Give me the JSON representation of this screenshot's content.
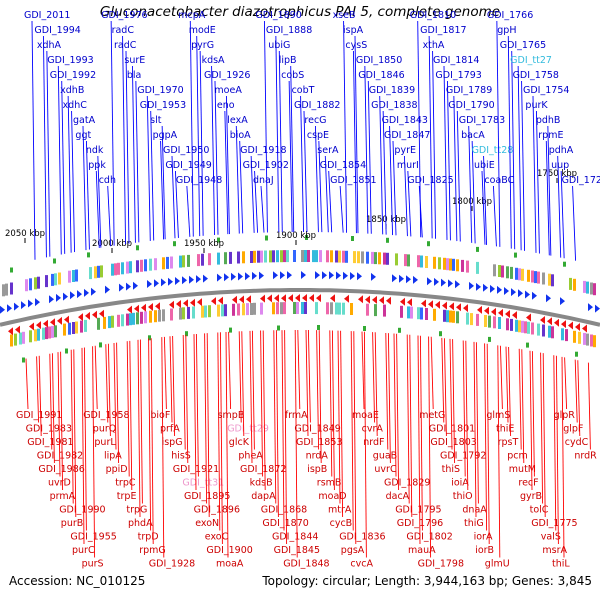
{
  "title": "Gluconacetobacter diazotrophicus PAI 5, complete genome",
  "accession": "Accession: NC_010125",
  "topology_summary": "Topology: circular; Length: 3,944,163 bp; Genes: 3,845",
  "colors": {
    "top_gene_label": "#0000cc",
    "top_gene_line": "#0000ff",
    "bottom_gene_label": "#cc0000",
    "bottom_gene_line": "#ff0000",
    "rna_label_top": "#33bbdd",
    "rna_label_bottom": "#ee99cc",
    "backbone": "#888888",
    "marker": "#33aa33"
  },
  "scale_marks": [
    "2050 kbp",
    "2000 kbp",
    "1950 kbp",
    "1900 kbp",
    "1850 kbp",
    "1800 kbp",
    "1750 kbp"
  ],
  "top_genes": [
    "GDI_2011",
    "GDI_1994",
    "xdhA",
    "GDI_1993",
    "GDI_1992",
    "xdhB",
    "xdhC",
    "gatA",
    "ggt",
    "ndk",
    "ppk",
    "cdh",
    "GDI_1976",
    "radC",
    "radC",
    "surE",
    "bla",
    "GDI_1970",
    "GDI_1953",
    "slt",
    "pgpA",
    "GDI_1950",
    "GDI_1949",
    "GDI_1948",
    "mcpA",
    "modE",
    "pyrG",
    "kdsA",
    "GDI_1926",
    "moeA",
    "eno",
    "lexA",
    "bioA",
    "GDI_1918",
    "GDI_1902",
    "dnaJ",
    "GDI_1890",
    "GDI_1888",
    "ubiG",
    "lipB",
    "cobS",
    "cobT",
    "GDI_1882",
    "recG",
    "cspE",
    "serA",
    "GDI_1854",
    "GDI_1851",
    "xseB",
    "ispA",
    "cysS",
    "GDI_1850",
    "GDI_1846",
    "GDI_1839",
    "GDI_1838",
    "GDI_1843",
    "GDI_1847",
    "pyrE",
    "murI",
    "GDI_1825",
    "GDI_1810",
    "GDI_1817",
    "xthA",
    "GDI_1814",
    "GDI_1793",
    "GDI_1789",
    "GDI_1790",
    "GDI_1783",
    "bacA",
    "GDI_tt28",
    "ubiE",
    "coaBC",
    "GDI_1766",
    "gpH",
    "GDI_1765",
    "GDI_tt27",
    "GDI_1758",
    "GDI_1754",
    "purK",
    "pdhB",
    "rpmE",
    "pdhA",
    "uup",
    "GDI_1720"
  ],
  "bottom_genes": [
    "GDI_1991",
    "GDI_1983",
    "GDI_1981",
    "GDI_1982",
    "GDI_1986",
    "uvrD",
    "prmA",
    "GDI_1990",
    "purB",
    "GDI_1955",
    "purC",
    "purS",
    "GDI_1958",
    "purQ",
    "purL",
    "lipA",
    "ppiD",
    "trpC",
    "trpE",
    "trpG",
    "phdA",
    "trpD",
    "rpmG",
    "GDI_1928",
    "bioF",
    "prfA",
    "ispG",
    "hisS",
    "GDI_1921",
    "GDI_tt31",
    "GDI_1895",
    "GDI_1896",
    "exoN",
    "exoC",
    "GDI_1900",
    "moaA",
    "smpB",
    "GDI_tt29",
    "glcK",
    "pheA",
    "GDI_1872",
    "kdsB",
    "dapA",
    "GDI_1868",
    "GDI_1870",
    "GDI_1844",
    "GDI_1845",
    "GDI_1848",
    "frmA",
    "GDI_1849",
    "GDI_1853",
    "nrdA",
    "ispB",
    "rsmB",
    "moaD",
    "mtrA",
    "cycB",
    "GDI_1836",
    "pgsA",
    "cvcA",
    "moaE",
    "cvrA",
    "nrdF",
    "guaB",
    "uvrC",
    "GDI_1829",
    "dacA",
    "GDI_1795",
    "GDI_1796",
    "GDI_1802",
    "mauA",
    "GDI_1798",
    "metG",
    "GDI_1801",
    "GDI_1803",
    "GDI_1792",
    "thiS",
    "ioiA",
    "thiO",
    "dnaA",
    "thiG",
    "iorA",
    "iorB",
    "glmU",
    "glmS",
    "thiE",
    "rpsT",
    "pcm",
    "mutM",
    "recF",
    "gyrB",
    "tolC",
    "GDI_1775",
    "valS",
    "msrA",
    "thiL",
    "glpR",
    "glpF",
    "cydC",
    "nrdR"
  ]
}
